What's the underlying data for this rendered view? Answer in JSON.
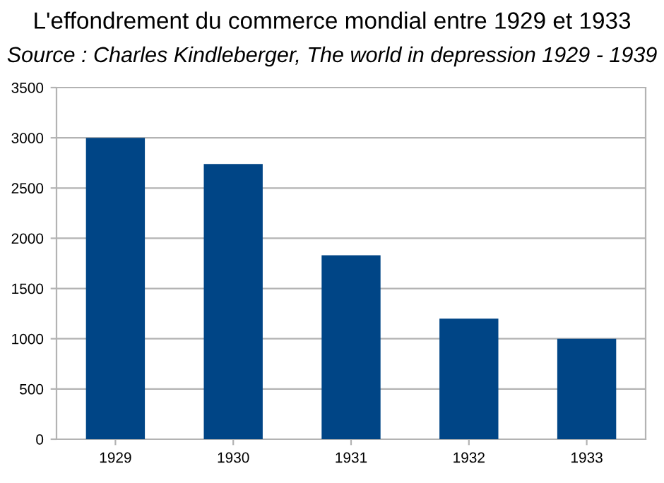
{
  "chart_data": {
    "type": "bar",
    "title": "L'effondrement du commerce mondial entre 1929 et 1933",
    "subtitle": "Source : Charles Kindleberger, The world in depression 1929 - 1939",
    "categories": [
      "1929",
      "1930",
      "1931",
      "1932",
      "1933"
    ],
    "values": [
      3000,
      2740,
      1830,
      1200,
      1000
    ],
    "color": "#004586",
    "ylim": [
      0,
      3500
    ],
    "yticks": [
      0,
      500,
      1000,
      1500,
      2000,
      2500,
      3000,
      3500
    ],
    "grid": "y"
  }
}
